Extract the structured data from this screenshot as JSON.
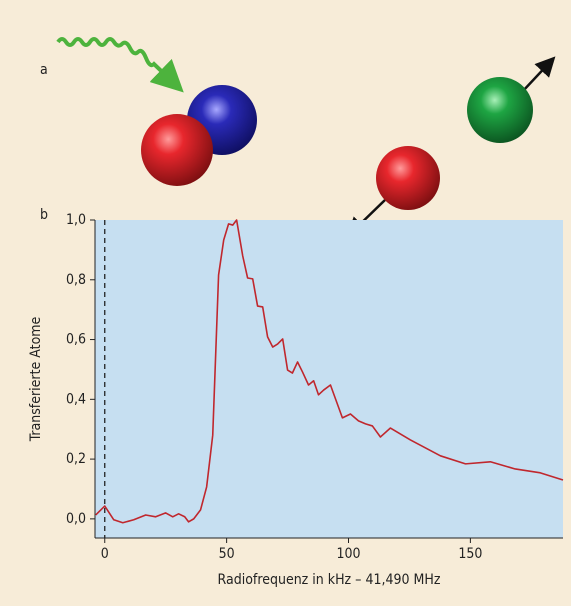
{
  "figure": {
    "panel_labels": [
      "a",
      "b"
    ]
  },
  "chart_data": {
    "type": "line",
    "x_label": "Radiofrequenz in kHz – 41,490 MHz",
    "y_label": "Transferierte Atome",
    "x": [
      -3.7,
      0,
      3.7,
      7.4,
      11.9,
      16.8,
      20.9,
      25,
      27.9,
      30.3,
      32.8,
      34.4,
      36.5,
      39.3,
      41.8,
      44.3,
      46.7,
      48.8,
      50.8,
      52.5,
      54.1,
      56.6,
      58.6,
      60.7,
      62.7,
      64.8,
      66.8,
      68.9,
      70.9,
      73,
      75,
      77,
      79.1,
      81.1,
      83.6,
      85.7,
      87.7,
      89.8,
      92.6,
      97.5,
      100.8,
      104.1,
      107,
      109.8,
      113.1,
      117.2,
      125.4,
      137.7,
      148,
      158.2,
      168.4,
      178.7,
      188
    ],
    "values": [
      0.013,
      0.043,
      -0.003,
      -0.013,
      -0.003,
      0.013,
      0.007,
      0.02,
      0.007,
      0.017,
      0.007,
      -0.01,
      0,
      0.03,
      0.107,
      0.28,
      0.816,
      0.933,
      0.987,
      0.983,
      1.0,
      0.88,
      0.806,
      0.803,
      0.712,
      0.709,
      0.609,
      0.575,
      0.585,
      0.602,
      0.498,
      0.488,
      0.525,
      0.492,
      0.448,
      0.462,
      0.415,
      0.431,
      0.448,
      0.338,
      0.351,
      0.328,
      0.318,
      0.311,
      0.274,
      0.304,
      0.264,
      0.211,
      0.184,
      0.191,
      0.167,
      0.154,
      0.13
    ],
    "color": "#c0272d",
    "background": "#c6dff1",
    "xlim": [
      -4,
      188
    ],
    "ylim": [
      -0.064,
      1.0
    ],
    "xticks": [
      0,
      50,
      100,
      150
    ],
    "yticks": [
      {
        "value": 0,
        "label": "0,0"
      },
      {
        "value": 0.2,
        "label": "0,2"
      },
      {
        "value": 0.4,
        "label": "0,4"
      },
      {
        "value": 0.6,
        "label": "0,6"
      },
      {
        "value": 0.8,
        "label": "0,8"
      },
      {
        "value": 1.0,
        "label": "1,0"
      }
    ]
  }
}
